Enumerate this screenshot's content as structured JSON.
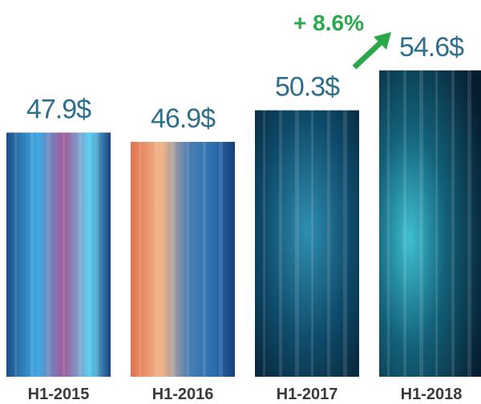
{
  "chart_data": {
    "type": "bar",
    "categories": [
      "H1-2015",
      "H1-2016",
      "H1-2017",
      "H1-2018"
    ],
    "values": [
      47.9,
      46.9,
      50.3,
      54.6
    ],
    "value_labels": [
      "47.9$",
      "46.9$",
      "50.3$",
      "54.6$"
    ],
    "ylim": [
      21.6,
      57
    ],
    "annotation": "+ 8.6%"
  }
}
